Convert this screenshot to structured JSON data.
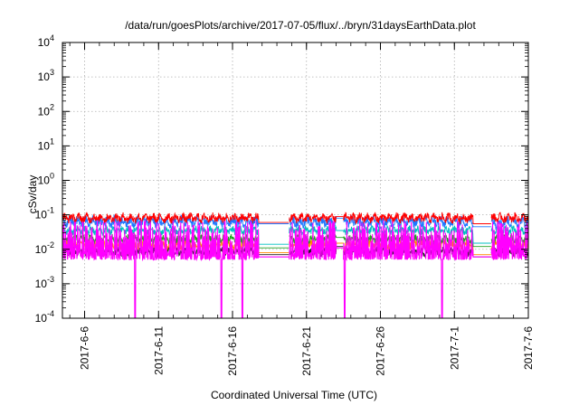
{
  "chart_data": {
    "type": "line",
    "title": "/data/run/goesPlots/archive/2017-07-05/flux/../bryn/31daysEarthData.plot",
    "xlabel": "Coordinated Universal Time (UTC)",
    "ylabel": "cSv/day",
    "yscale": "log",
    "ylim": [
      0.0001,
      10000
    ],
    "xlim": [
      "2017-06-04T12:00",
      "2017-07-06T00:00"
    ],
    "grid": true,
    "x_tick_labels": [
      "2017-6-6",
      "2017-6-11",
      "2017-6-16",
      "2017-6-21",
      "2017-6-26",
      "2017-7-1",
      "2017-7-6"
    ],
    "x_tick_dates": [
      "2017-06-06",
      "2017-06-11",
      "2017-06-16",
      "2017-06-21",
      "2017-06-26",
      "2017-07-01",
      "2017-07-06"
    ],
    "y_ticks": [
      {
        "base": "10",
        "exp": "-4",
        "value": 0.0001
      },
      {
        "base": "10",
        "exp": "-3",
        "value": 0.001
      },
      {
        "base": "10",
        "exp": "-2",
        "value": 0.01
      },
      {
        "base": "10",
        "exp": "-1",
        "value": 0.1
      },
      {
        "base": "10",
        "exp": "0",
        "value": 1
      },
      {
        "base": "10",
        "exp": "1",
        "value": 10
      },
      {
        "base": "10",
        "exp": "2",
        "value": 100
      },
      {
        "base": "10",
        "exp": "3",
        "value": 1000
      },
      {
        "base": "10",
        "exp": "4",
        "value": 10000
      }
    ],
    "data_segments": [
      {
        "start": "2017-06-04T12:00",
        "end": "2017-06-17T18:00"
      },
      {
        "start": "2017-06-19T20:00",
        "end": "2017-06-23T00:00"
      },
      {
        "start": "2017-06-23T12:00",
        "end": "2017-07-02T06:00"
      },
      {
        "start": "2017-07-03T12:00",
        "end": "2017-07-06T00:00"
      }
    ],
    "series": [
      {
        "color": "#ff0000",
        "low": 0.055,
        "high": 0.12,
        "gap_values": [
          0.06,
          0.09,
          0.055
        ]
      },
      {
        "color": "#1f78ff",
        "low": 0.04,
        "high": 0.1,
        "gap_values": [
          0.055,
          0.08,
          0.045
        ]
      },
      {
        "color": "#00c0c0",
        "low": 0.025,
        "high": 0.05,
        "gap_values": [
          0.014,
          0.035,
          0.015
        ]
      },
      {
        "color": "#20a020",
        "low": 0.014,
        "high": 0.028,
        "gap_values": [
          0.011,
          0.022,
          0.012
        ]
      },
      {
        "color": "#ff8800",
        "low": 0.009,
        "high": 0.02,
        "gap_values": [
          0.008,
          0.015,
          0.007
        ]
      },
      {
        "color": "#202020",
        "low": 0.006,
        "high": 0.012,
        "gap_values": [
          0.007,
          0.012,
          0.006
        ]
      },
      {
        "color": "#ff00ff",
        "low": 0.005,
        "high": 0.07,
        "gap_values": [
          0.006,
          0.011,
          0.006
        ]
      }
    ],
    "magenta_dropouts": [
      "2017-06-09T10:00",
      "2017-06-15T06:00",
      "2017-06-16T16:00",
      "2017-06-23T04:00",
      "2017-06-23T14:00",
      "2017-06-30T04:00",
      "2017-07-03T05:00"
    ]
  }
}
